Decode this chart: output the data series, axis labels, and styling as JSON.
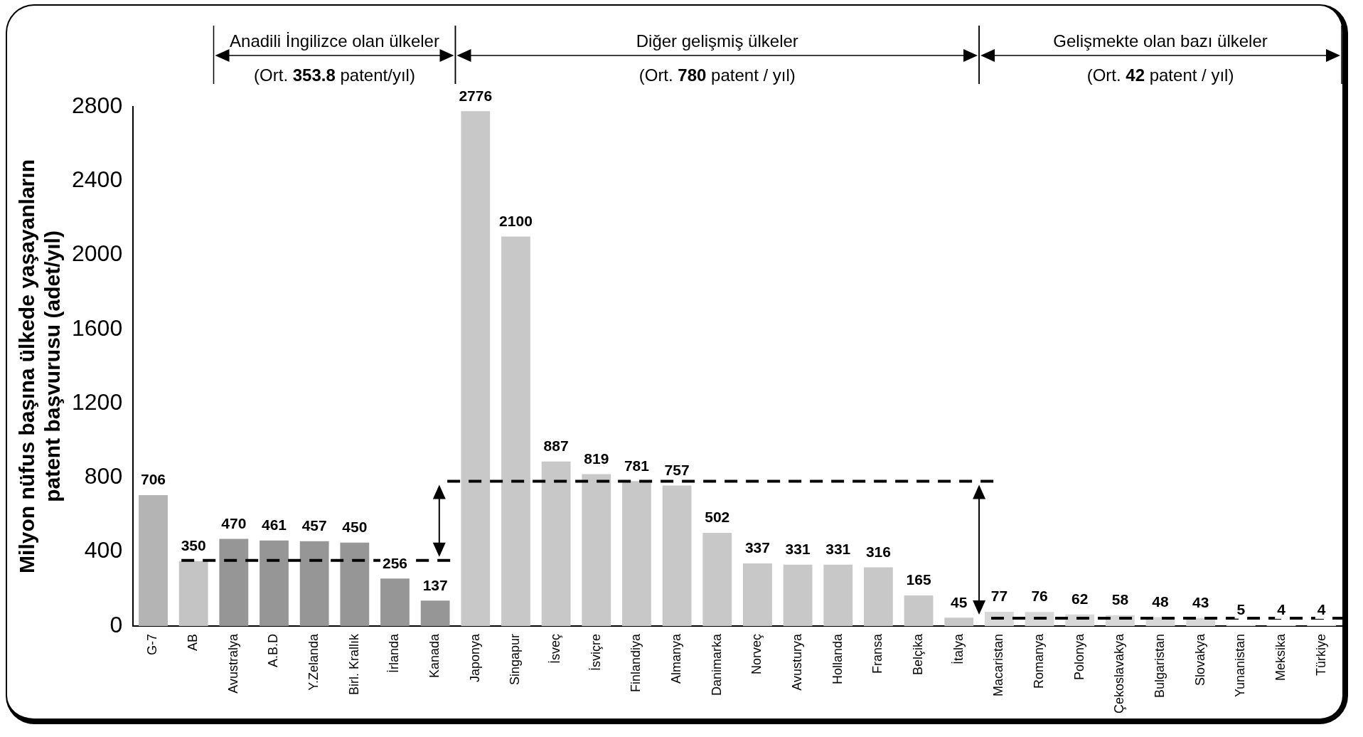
{
  "chart_data": {
    "type": "bar",
    "ylabel": "Milyon nüfus başına ülkede yaşayanların patent başvurusu (adet/yıl)",
    "categories": [
      "G-7",
      "AB",
      "Avustralya",
      "A.B.D",
      "Y.Zelanda",
      "Birl. Krallık",
      "İrlanda",
      "Kanada",
      "Japonya",
      "Singapur",
      "İsveç",
      "İsviçre",
      "Finlandiya",
      "Almanya",
      "Danimarka",
      "Norveç",
      "Avusturya",
      "Hollanda",
      "Fransa",
      "Belçika",
      "İtalya",
      "Macaristan",
      "Romanya",
      "Polonya",
      "Çekoslavakya",
      "Bulgaristan",
      "Slovakya",
      "Yunanistan",
      "Meksika",
      "Türkiye"
    ],
    "values": [
      706,
      350,
      470,
      461,
      457,
      450,
      256,
      137,
      2776,
      2100,
      887,
      819,
      781,
      757,
      502,
      337,
      331,
      331,
      316,
      165,
      45,
      77,
      76,
      62,
      58,
      48,
      43,
      5,
      4,
      4
    ],
    "colors": [
      "#b4b4b4",
      "#c4c4c4",
      "#969696",
      "#969696",
      "#969696",
      "#969696",
      "#969696",
      "#969696",
      "#c8c8c8",
      "#c8c8c8",
      "#c8c8c8",
      "#c8c8c8",
      "#c8c8c8",
      "#c8c8c8",
      "#c8c8c8",
      "#c8c8c8",
      "#c8c8c8",
      "#c8c8c8",
      "#c8c8c8",
      "#c8c8c8",
      "#c8c8c8",
      "#d8d8d8",
      "#d8d8d8",
      "#d8d8d8",
      "#d8d8d8",
      "#d8d8d8",
      "#d8d8d8",
      "#d8d8d8",
      "#d8d8d8",
      "#d8d8d8"
    ],
    "ylim": [
      0,
      2800
    ],
    "yticks": [
      0,
      400,
      800,
      1200,
      1600,
      2000,
      2400,
      2800
    ],
    "data_labels": true,
    "grid": false,
    "legend": false,
    "ref_lines": [
      {
        "axis": "y",
        "value": 353.8,
        "color": "#000000",
        "line_style": "dashed"
      },
      {
        "axis": "y",
        "value": 780,
        "color": "#000000",
        "line_style": "dashed"
      },
      {
        "axis": "y",
        "value": 42,
        "color": "#000000",
        "line_style": "dashed"
      }
    ],
    "annotations": [
      "Anadili İngilizce olan ülkeler",
      "(Ort. 353.8 patent/yıl)",
      "Diğer gelişmiş ülkeler",
      "(Ort. 780 patent / yıl)",
      "Gelişmekte olan bazı ülkeler",
      "(Ort. 42 patent / yıl)"
    ]
  }
}
